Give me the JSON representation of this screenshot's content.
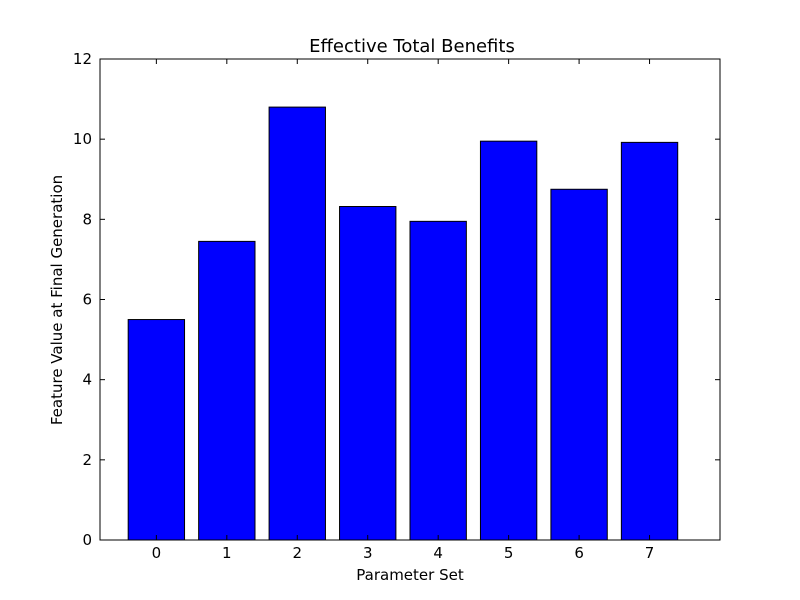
{
  "chart_data": {
    "type": "bar",
    "title": "Effective Total Benefits",
    "xlabel": "Parameter Set",
    "ylabel": "Feature Value at Final Generation",
    "categories": [
      "0",
      "1",
      "2",
      "3",
      "4",
      "5",
      "6",
      "7"
    ],
    "values": [
      5.5,
      7.45,
      10.8,
      8.32,
      7.95,
      9.95,
      8.75,
      9.92
    ],
    "ylim": [
      0,
      12
    ],
    "yticks": [
      "0",
      "2",
      "4",
      "6",
      "8",
      "10",
      "12"
    ],
    "grid": false,
    "bar_color": "#0000ff"
  }
}
